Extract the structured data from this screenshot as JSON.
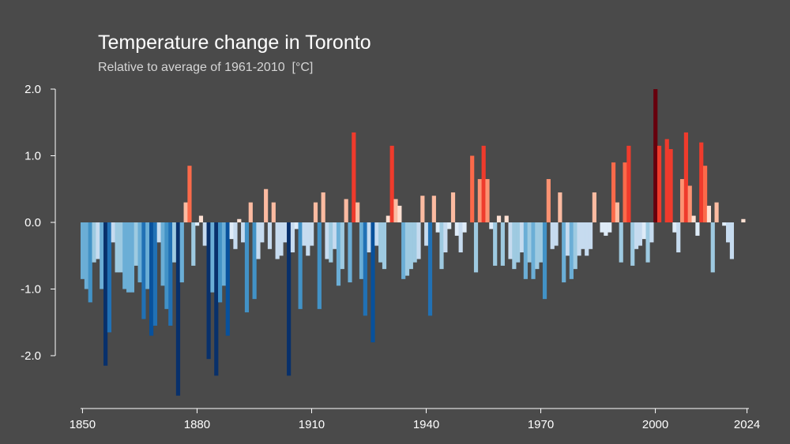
{
  "chart_data": {
    "type": "bar",
    "title": "Temperature change in Toronto",
    "subtitle": "Relative to average of 1961-2010  [°C]",
    "xlabel": "",
    "ylabel": "",
    "xlim": [
      1850,
      2024
    ],
    "ylim": [
      -2.6,
      2.4
    ],
    "x_ticks": [
      1850,
      1880,
      1910,
      1940,
      1970,
      2000,
      2024
    ],
    "x_tick_labels": [
      "1850",
      "1880",
      "1910",
      "1940",
      "1970",
      "2000",
      "2024"
    ],
    "y_ticks": [
      2.0,
      1.0,
      0.0,
      -1.0,
      -2.0
    ],
    "y_tick_labels": [
      "2.0",
      "1.0",
      "0.0",
      "-1.0",
      "-2.0"
    ],
    "grid": false,
    "legend": "none",
    "color_scale": {
      "cold": [
        "#08306b",
        "#08519c",
        "#2171b5",
        "#4292c6",
        "#6baed6",
        "#9ecae1",
        "#c6dbef",
        "#deebf7"
      ],
      "warm": [
        "#fee0d2",
        "#fcbba1",
        "#fc9272",
        "#fb6a4a",
        "#ef3b2c",
        "#cb181d",
        "#a50f15",
        "#67000d"
      ]
    },
    "colors": {
      "background": "#4a4a4a",
      "axis": "#ffffff",
      "text": "#ffffff"
    },
    "x": [
      1850,
      1851,
      1852,
      1853,
      1854,
      1855,
      1856,
      1857,
      1858,
      1859,
      1860,
      1861,
      1862,
      1863,
      1864,
      1865,
      1866,
      1867,
      1868,
      1869,
      1870,
      1871,
      1872,
      1873,
      1874,
      1875,
      1876,
      1877,
      1878,
      1879,
      1880,
      1881,
      1882,
      1883,
      1884,
      1885,
      1886,
      1887,
      1888,
      1889,
      1890,
      1891,
      1892,
      1893,
      1894,
      1895,
      1896,
      1897,
      1898,
      1899,
      1900,
      1901,
      1902,
      1903,
      1904,
      1905,
      1906,
      1907,
      1908,
      1909,
      1910,
      1911,
      1912,
      1913,
      1914,
      1915,
      1916,
      1917,
      1918,
      1919,
      1920,
      1921,
      1922,
      1923,
      1924,
      1925,
      1926,
      1927,
      1928,
      1929,
      1930,
      1931,
      1932,
      1933,
      1934,
      1935,
      1936,
      1937,
      1938,
      1939,
      1940,
      1941,
      1942,
      1943,
      1944,
      1945,
      1946,
      1947,
      1948,
      1949,
      1950,
      1951,
      1952,
      1953,
      1954,
      1955,
      1956,
      1957,
      1958,
      1959,
      1960,
      1961,
      1962,
      1963,
      1964,
      1965,
      1966,
      1967,
      1968,
      1969,
      1970,
      1971,
      1972,
      1973,
      1974,
      1975,
      1976,
      1977,
      1978,
      1979,
      1980,
      1981,
      1982,
      1983,
      1984,
      1985,
      1986,
      1987,
      1988,
      1989,
      1990,
      1991,
      1992,
      1993,
      1994,
      1995,
      1996,
      1997,
      1998,
      1999,
      2000,
      2001,
      2002,
      2003,
      2004,
      2005,
      2006,
      2007,
      2008,
      2009,
      2010,
      2011,
      2012,
      2013,
      2014,
      2015,
      2016,
      2017,
      2018,
      2019,
      2020,
      2021,
      2022,
      2023,
      2024
    ],
    "values": [
      -0.85,
      -1.0,
      -1.2,
      -0.6,
      -0.55,
      -1.0,
      -2.15,
      -1.65,
      -0.3,
      -0.75,
      -0.75,
      -1.0,
      -1.05,
      -1.05,
      -0.65,
      -0.9,
      -1.45,
      -1.0,
      -1.7,
      -1.55,
      -0.3,
      -0.95,
      -1.3,
      -1.55,
      -0.6,
      -2.6,
      -0.9,
      0.3,
      0.85,
      -0.65,
      -0.05,
      0.1,
      -0.35,
      -2.05,
      -1.05,
      -2.3,
      -1.2,
      -0.95,
      -1.7,
      -0.25,
      -0.4,
      0.05,
      -0.3,
      -1.35,
      0.3,
      -1.15,
      -0.55,
      -0.3,
      0.5,
      -0.4,
      0.3,
      -0.55,
      -0.5,
      -0.3,
      -2.3,
      -0.45,
      -0.1,
      -1.3,
      -0.35,
      -0.5,
      -0.35,
      0.3,
      -1.3,
      0.45,
      -0.55,
      -0.6,
      -0.4,
      -0.95,
      -0.7,
      0.35,
      -0.9,
      1.35,
      0.3,
      -0.85,
      -1.4,
      -0.45,
      -1.8,
      -0.35,
      -0.6,
      -0.7,
      0.1,
      1.15,
      0.35,
      0.25,
      -0.85,
      -0.8,
      -0.7,
      -0.6,
      -0.55,
      0.4,
      -0.35,
      -1.4,
      0.4,
      -0.15,
      -0.7,
      -0.45,
      -0.1,
      0.45,
      -0.2,
      -0.45,
      -0.15,
      0.0,
      1.0,
      -0.75,
      0.65,
      1.15,
      0.65,
      -0.1,
      -0.65,
      0.1,
      -0.65,
      0.1,
      -0.55,
      -0.7,
      -0.6,
      -0.45,
      -0.85,
      -0.6,
      -0.85,
      -0.7,
      -0.6,
      -1.15,
      0.65,
      -0.4,
      -0.35,
      0.45,
      -0.9,
      -0.5,
      -0.85,
      -0.7,
      -0.5,
      -0.4,
      -0.5,
      -0.4,
      0.45,
      0.0,
      -0.15,
      -0.2,
      -0.15,
      0.9,
      0.3,
      -0.6,
      0.9,
      1.15,
      -0.65,
      -0.4,
      -0.35,
      -0.25,
      -0.6,
      -0.3,
      2.0,
      1.15,
      0.0,
      1.25,
      1.1,
      -0.15,
      -0.45,
      0.65,
      1.35,
      0.55,
      0.1,
      -0.2,
      1.2,
      0.85,
      0.25,
      -0.75,
      0.3,
      0.0,
      -0.05,
      -0.3,
      -0.55,
      0.0,
      0.0,
      0.05,
      0.0
    ]
  }
}
